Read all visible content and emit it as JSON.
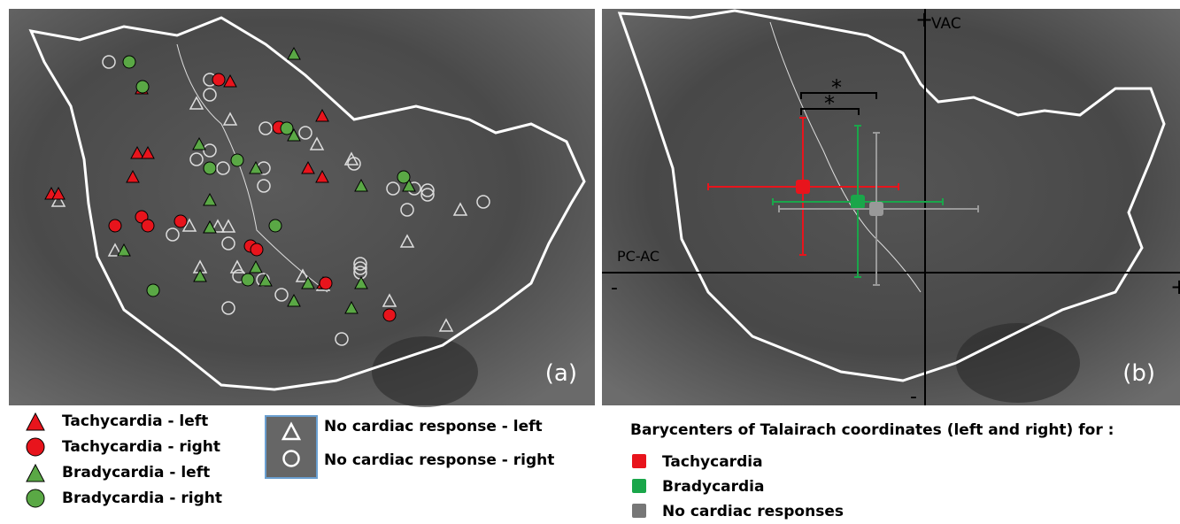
{
  "panel_a": {
    "label": "(a)"
  },
  "panel_b": {
    "label": "(b)",
    "vertical_axis": "VAC",
    "horizontal_axis": "PC-AC",
    "plus_top": "+",
    "minus_bottom": "-",
    "minus_left": "-",
    "plus_right": "+",
    "significance": [
      "*",
      "*"
    ]
  },
  "legend_a": {
    "items": [
      "Tachycardia - left",
      "Tachycardia - right",
      "Bradycardia - left",
      "Bradycardia - right"
    ],
    "box_items": [
      "No cardiac response - left",
      "No cardiac response - right"
    ]
  },
  "legend_b": {
    "title": "Barycenters of Talairach coordinates (left and right) for :",
    "items": [
      "Tachycardia",
      "Bradycardia",
      "No cardiac responses"
    ]
  }
}
